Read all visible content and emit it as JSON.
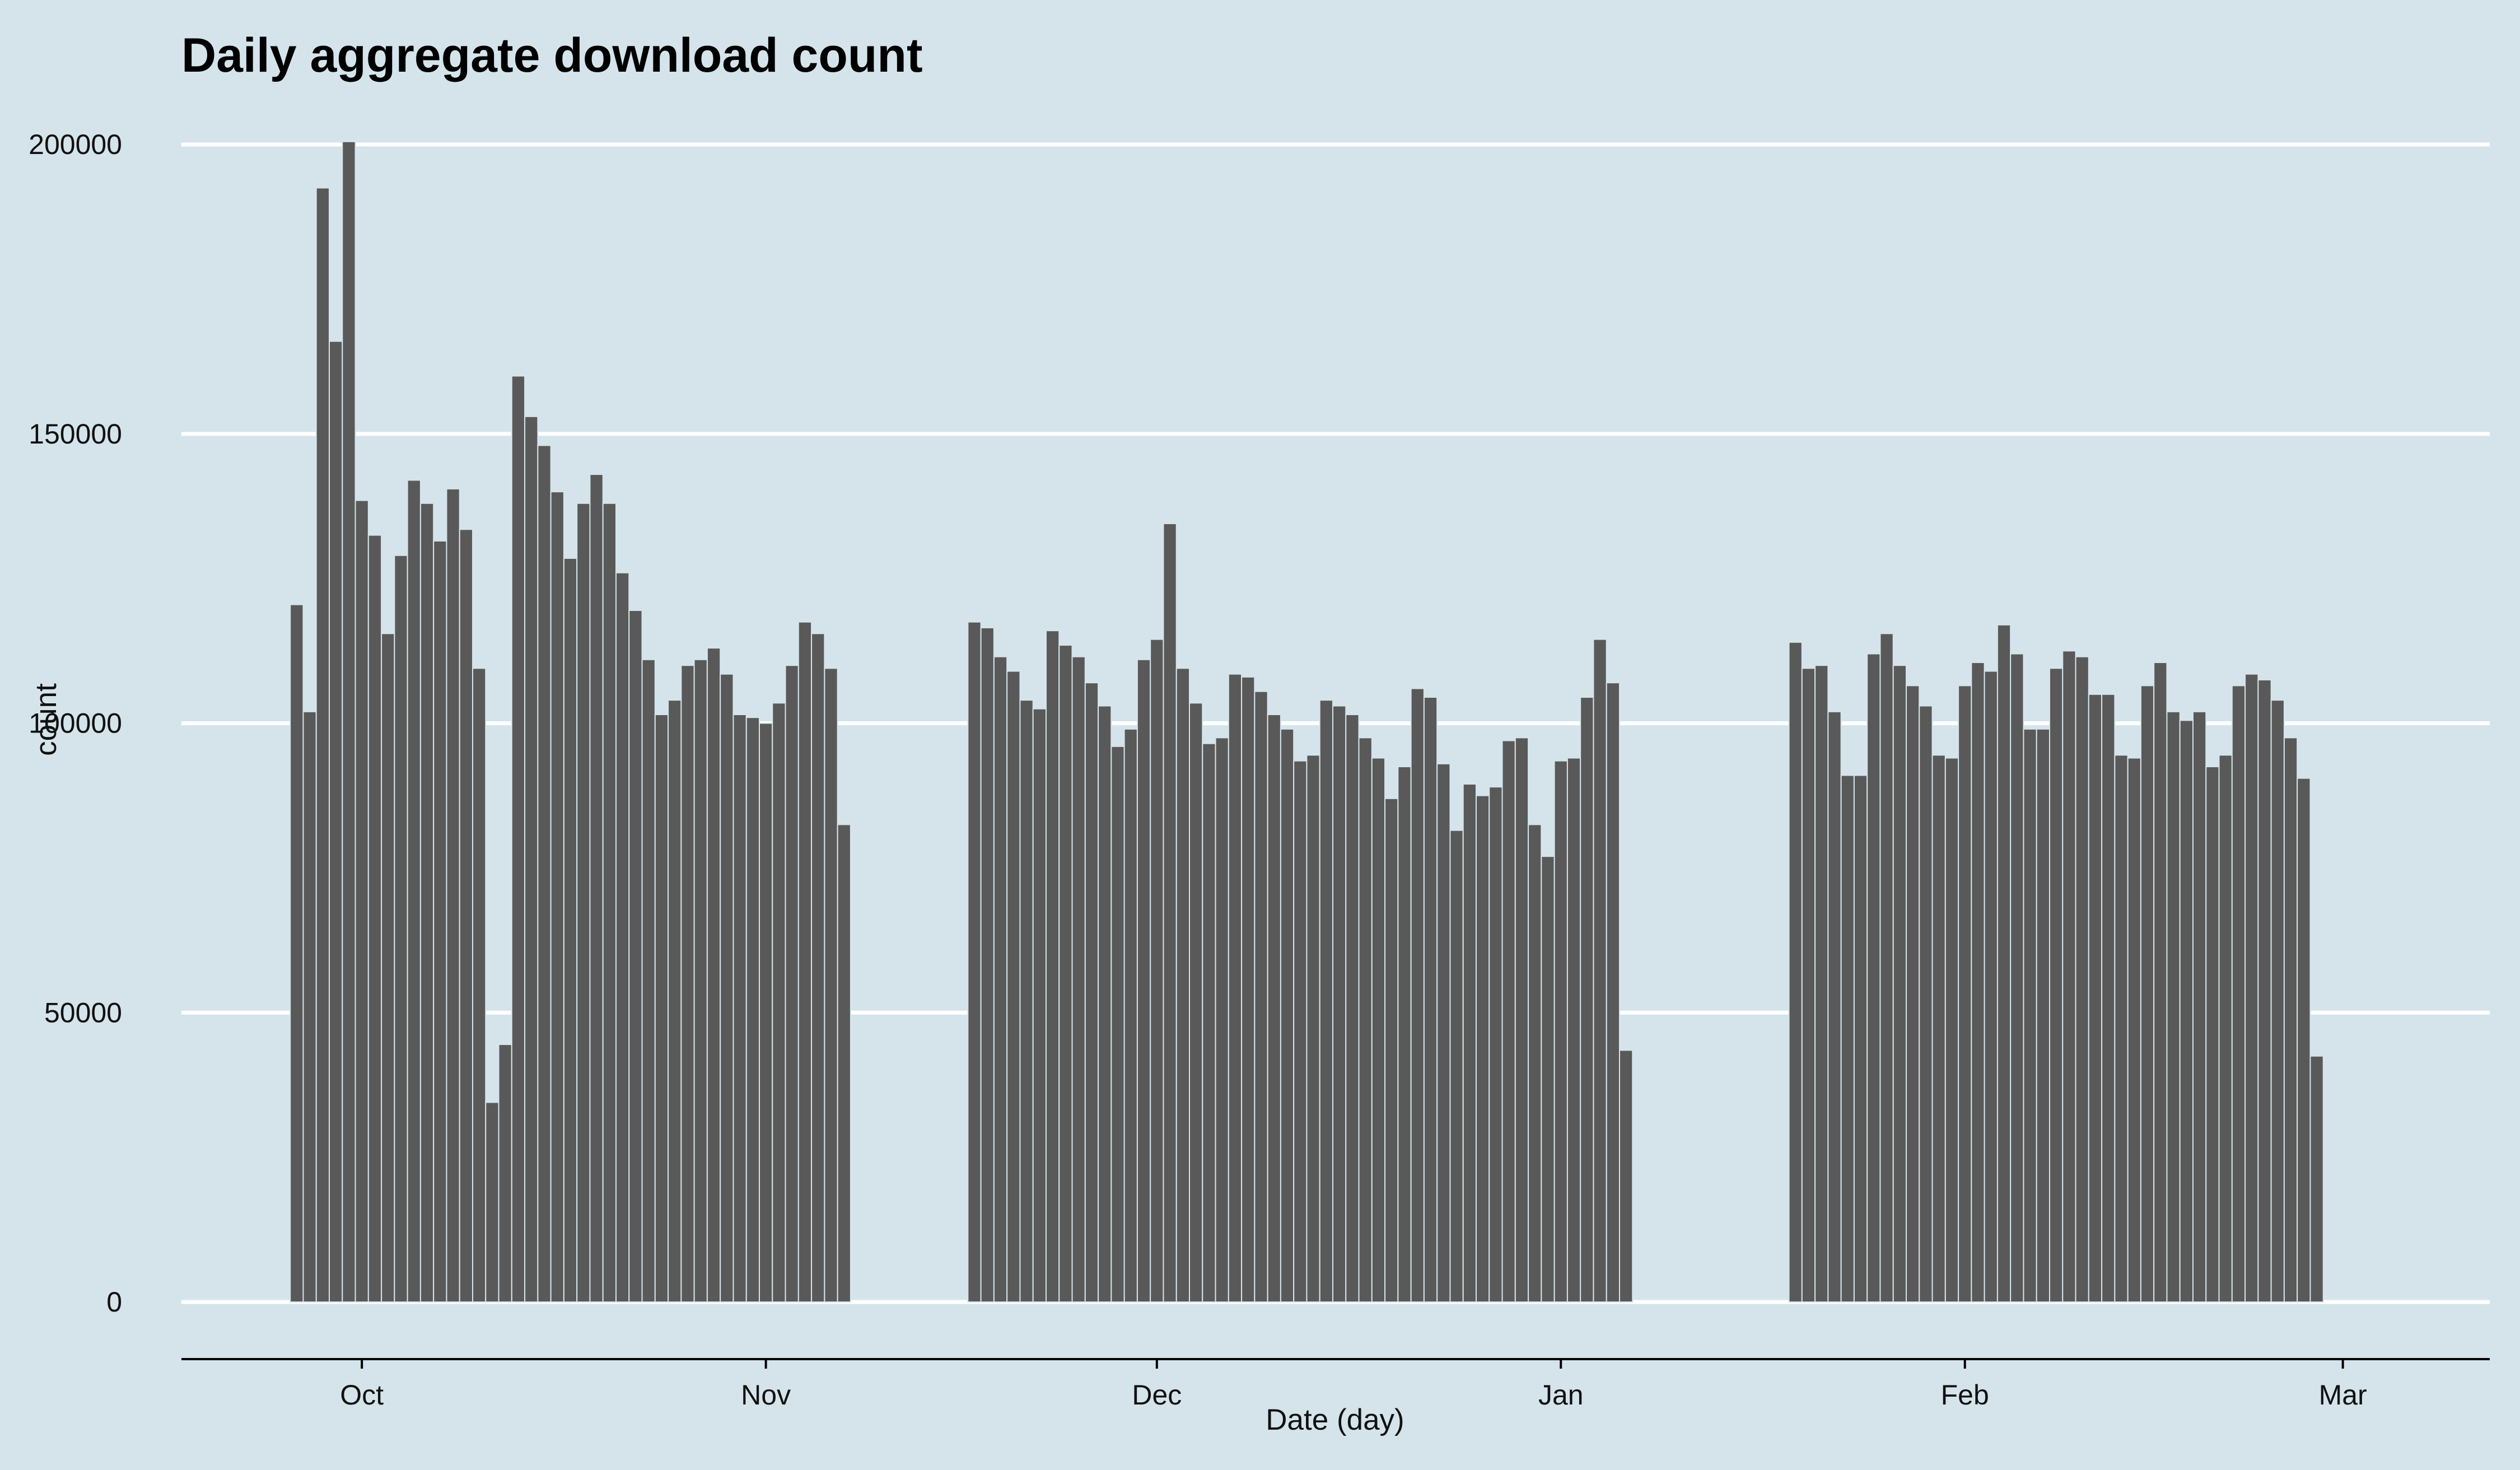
{
  "colors": {
    "background": "#d5e4eb",
    "bar": "#595959",
    "bar_outline": "#d5e4eb",
    "grid": "#ffffff",
    "axis": "#000000"
  },
  "chart_data": {
    "type": "bar",
    "title": "Daily aggregate download count",
    "xlabel": "Date (day)",
    "ylabel": "count",
    "ylim": [
      0,
      200000
    ],
    "yticks": [
      0,
      50000,
      100000,
      150000,
      200000
    ],
    "ytick_labels": [
      "0",
      "50000",
      "100000",
      "150000",
      "200000"
    ],
    "xlim": [
      "2015-09-23",
      "2016-03-06"
    ],
    "xticks": [
      {
        "date": "2015-10-01",
        "label": "Oct"
      },
      {
        "date": "2015-11-01",
        "label": "Nov"
      },
      {
        "date": "2015-12-01",
        "label": "Dec"
      },
      {
        "date": "2016-01-01",
        "label": "Jan"
      },
      {
        "date": "2016-02-01",
        "label": "Feb"
      },
      {
        "date": "2016-03-01",
        "label": "Mar"
      }
    ],
    "grid": "horizontal major lines only",
    "legend": "none",
    "series": [
      {
        "start_date": "2015-09-26",
        "values": [
          120500,
          102000,
          192500,
          166000,
          200500,
          138500,
          132500,
          115500,
          129000,
          142000,
          138000,
          131500,
          140500,
          133500,
          109500,
          34500,
          44500,
          160000,
          153000,
          148000,
          140000,
          128500,
          138000,
          143000,
          138000,
          126000,
          119500,
          111000,
          101500,
          104000,
          110000,
          111000,
          113000,
          108500,
          101500,
          101000,
          100000,
          103500,
          110000,
          117500,
          115500,
          109500,
          82500
        ]
      },
      {
        "start_date": "2015-11-17",
        "values": [
          117500,
          116500,
          111500,
          109000,
          104000,
          102500,
          116000,
          113500,
          111500,
          107000,
          103000,
          96000,
          99000,
          111000,
          114500,
          134500,
          109500,
          103500,
          96500,
          97500,
          108500,
          108000,
          105500,
          101500,
          99000,
          93500,
          94500,
          104000,
          103000,
          101500,
          97500,
          94000,
          87000,
          92500,
          106000,
          104500,
          93000,
          81500,
          89500,
          87500,
          89000,
          97000,
          97500,
          82500,
          77000,
          93500,
          94000,
          104500,
          114500,
          107000,
          43500
        ]
      },
      {
        "start_date": "2016-01-19",
        "values": [
          114000,
          109500,
          110000,
          102000,
          91000,
          91000,
          112000,
          115500,
          110000,
          106500,
          103000,
          94500,
          94000,
          106500,
          110500,
          109000,
          117000,
          112000,
          99000,
          99000,
          109500,
          112500,
          111500,
          105000,
          105000,
          94500,
          94000,
          106500,
          110500,
          102000,
          100500,
          102000,
          92500,
          94500,
          106500,
          108500,
          107500,
          104000,
          97500,
          90500,
          42500
        ]
      }
    ]
  }
}
